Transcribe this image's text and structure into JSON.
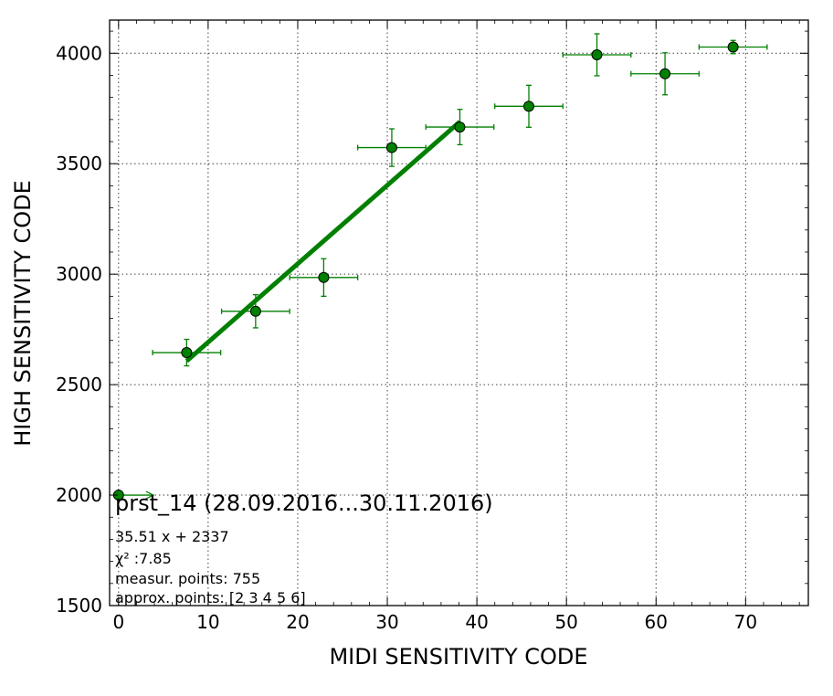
{
  "chart_data": {
    "type": "scatter",
    "xlabel": "MIDI SENSITIVITY CODE",
    "ylabel": "HIGH SENSITIVITY CODE",
    "xlim": [
      -1,
      77
    ],
    "ylim": [
      1500,
      4150
    ],
    "xticks": [
      0,
      10,
      20,
      30,
      40,
      50,
      60,
      70
    ],
    "yticks": [
      1500,
      2000,
      2500,
      3000,
      3500,
      4000
    ],
    "grid": true,
    "color": "#008000",
    "points": [
      {
        "x": 0.0,
        "y": 2000,
        "xerr": 0,
        "yerr": 0
      },
      {
        "x": 7.6,
        "y": 2645,
        "xerr": 3.8,
        "yerr": 60
      },
      {
        "x": 15.3,
        "y": 2832,
        "xerr": 3.8,
        "yerr": 75
      },
      {
        "x": 22.9,
        "y": 2985,
        "xerr": 3.8,
        "yerr": 85
      },
      {
        "x": 30.5,
        "y": 3573,
        "xerr": 3.8,
        "yerr": 85
      },
      {
        "x": 38.1,
        "y": 3666,
        "xerr": 3.8,
        "yerr": 80
      },
      {
        "x": 45.8,
        "y": 3760,
        "xerr": 3.8,
        "yerr": 95
      },
      {
        "x": 53.4,
        "y": 3993,
        "xerr": 3.8,
        "yerr": 95
      },
      {
        "x": 61.0,
        "y": 3907,
        "xerr": 3.8,
        "yerr": 95
      },
      {
        "x": 68.6,
        "y": 4028,
        "xerr": 3.8,
        "yerr": 30
      }
    ],
    "fit_line": {
      "slope": 35.51,
      "intercept": 2337,
      "x_range": [
        7.6,
        38.1
      ]
    },
    "annotation": {
      "title": "prst_14 (28.09.2016...30.11.2016)",
      "equation": "35.51 x + 2337",
      "chi2_label": "χ² :7.85",
      "measur_points": "measur. points: 755",
      "approx_points": "approx. points: [2 3 4 5 6]"
    }
  }
}
